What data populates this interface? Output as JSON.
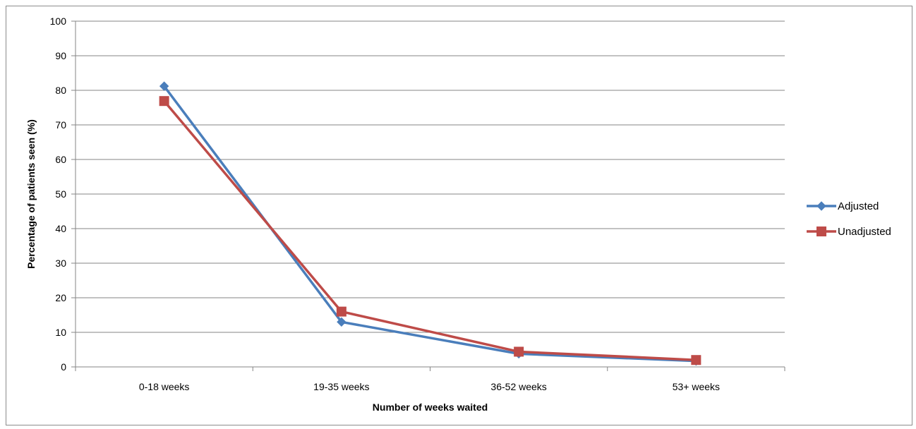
{
  "chart_data": {
    "type": "line",
    "title": "",
    "xlabel": "Number of weeks waited",
    "ylabel": "Percentage of patients seen (%)",
    "categories": [
      "0-18 weeks",
      "19-35 weeks",
      "36-52 weeks",
      "53+ weeks"
    ],
    "ylim": [
      0,
      100
    ],
    "yticks": [
      "0",
      "10",
      "20",
      "30",
      "40",
      "50",
      "60",
      "70",
      "80",
      "90",
      "100"
    ],
    "grid": true,
    "legend_position": "right",
    "series": [
      {
        "name": "Adjusted",
        "values": [
          81.2,
          13.0,
          3.8,
          1.7
        ],
        "color": "#4A7EBB",
        "marker": "diamond"
      },
      {
        "name": "Unadjusted",
        "values": [
          76.9,
          16.0,
          4.4,
          2.0
        ],
        "color": "#BE4B48",
        "marker": "square"
      }
    ]
  }
}
